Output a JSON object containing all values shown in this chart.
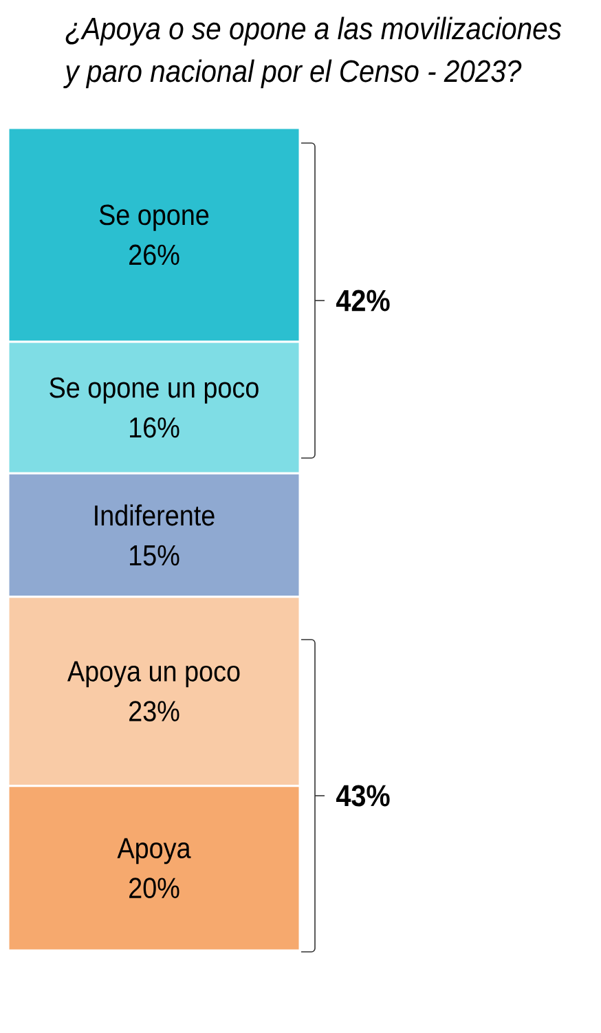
{
  "chart_data": {
    "type": "bar",
    "title": "¿Apoya o se opone a las movilizaciones y paro nacional por el Censo - 2023?",
    "categories": [
      null
    ],
    "stacked": true,
    "series": [
      {
        "name": "Apoya",
        "color": "#f6a96e",
        "values": [
          20
        ],
        "value_labels": [
          "20%"
        ]
      },
      {
        "name": "Apoya un poco",
        "color": "#f9cba6",
        "values": [
          23
        ],
        "value_labels": [
          "23%"
        ]
      },
      {
        "name": "Indiferente",
        "color": "#8fa9d1",
        "values": [
          15
        ],
        "value_labels": [
          "15%"
        ]
      },
      {
        "name": "Se opone un poco",
        "color": "#7fdde5",
        "values": [
          16
        ],
        "value_labels": [
          "16%"
        ]
      },
      {
        "name": "Se opone",
        "color": "#2bbfd0",
        "values": [
          26
        ],
        "value_labels": [
          "26%"
        ]
      }
    ],
    "annotations": [
      "42%",
      "43%"
    ]
  }
}
